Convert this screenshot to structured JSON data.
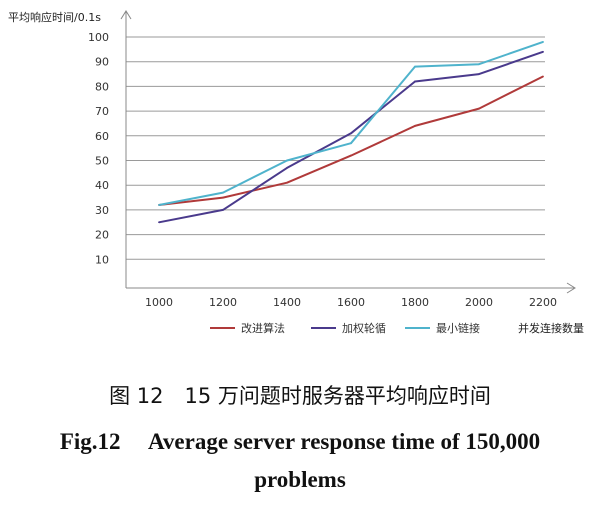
{
  "chart_data": {
    "type": "line",
    "ylabel": "平均响应时间/0.1s",
    "xlabel": "并发连接数量",
    "x": [
      1000,
      1200,
      1400,
      1600,
      1800,
      2000,
      2200
    ],
    "x_ticks": [
      "1000",
      "1200",
      "1400",
      "1600",
      "1800",
      "2000",
      "2200"
    ],
    "y_ticks": [
      "10",
      "20",
      "30",
      "40",
      "50",
      "60",
      "70",
      "80",
      "90",
      "100"
    ],
    "ylim": [
      0,
      100
    ],
    "grid": true,
    "legend_position": "bottom",
    "series": [
      {
        "name": "改进算法",
        "color": "#b03a3a",
        "values": [
          32,
          35,
          41,
          52,
          64,
          71,
          84
        ]
      },
      {
        "name": "加权轮循",
        "color": "#4a3a8c",
        "values": [
          25,
          30,
          47,
          61,
          82,
          85,
          94
        ]
      },
      {
        "name": "最小链接",
        "color": "#4fb3cc",
        "values": [
          32,
          37,
          50,
          57,
          88,
          89,
          98
        ]
      }
    ]
  },
  "caption": {
    "cn": "图 12　15 万问题时服务器平均响应时间",
    "en_line1": "Fig.12　 Average server response time of 150,000",
    "en_line2": "problems"
  }
}
